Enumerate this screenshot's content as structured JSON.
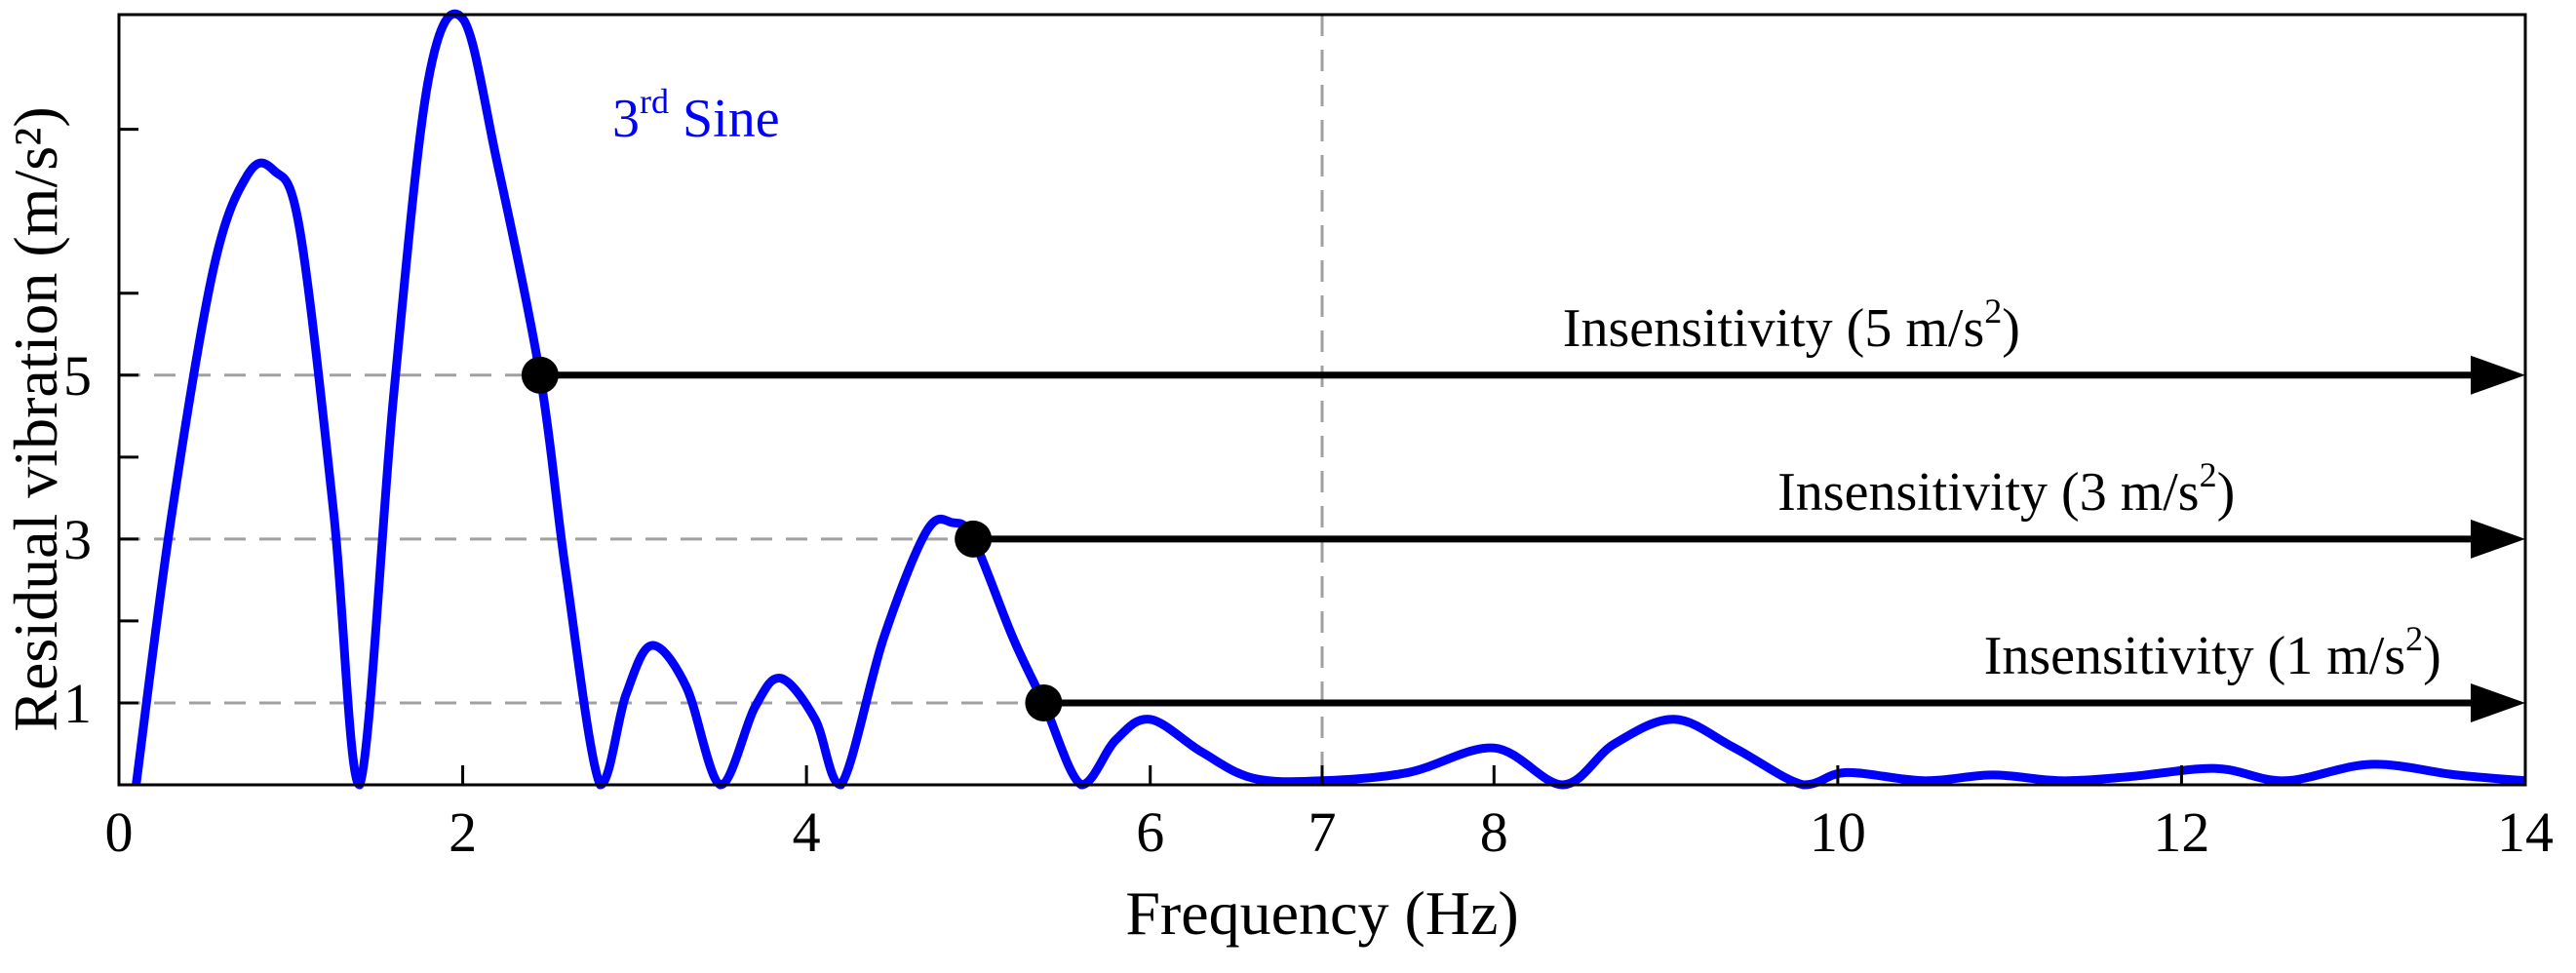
{
  "chart_data": {
    "type": "line",
    "xlabel": "Frequency (Hz)",
    "ylabel": "Residual vibration (m/s²)",
    "xlim": [
      0,
      14
    ],
    "ylim": [
      0,
      9.4
    ],
    "x_ticks": [
      {
        "value": 0,
        "label": "0"
      },
      {
        "value": 2,
        "label": "2"
      },
      {
        "value": 4,
        "label": "4"
      },
      {
        "value": 6,
        "label": "6"
      },
      {
        "value": 7,
        "label": "7"
      },
      {
        "value": 8,
        "label": "8"
      },
      {
        "value": 10,
        "label": "10"
      },
      {
        "value": 12,
        "label": "12"
      },
      {
        "value": 14,
        "label": "14"
      }
    ],
    "y_ticks": [
      {
        "value": 1,
        "label": "1"
      },
      {
        "value": 2,
        "label": ""
      },
      {
        "value": 3,
        "label": "3"
      },
      {
        "value": 4,
        "label": ""
      },
      {
        "value": 5,
        "label": "5"
      },
      {
        "value": 6,
        "label": ""
      },
      {
        "value": 8,
        "label": ""
      }
    ],
    "series": [
      {
        "name": "3rd Sine",
        "name_main": "3",
        "name_sup": "rd",
        "name_rest": " Sine",
        "color": "#0000ff",
        "x": [
          0.1,
          0.3,
          0.55,
          0.75,
          0.9,
          1.05,
          1.25,
          1.4,
          1.6,
          1.8,
          2.0,
          2.2,
          2.45,
          2.6,
          2.8,
          2.95,
          3.1,
          3.3,
          3.5,
          3.7,
          3.85,
          4.05,
          4.2,
          4.45,
          4.7,
          4.85,
          4.97,
          5.2,
          5.38,
          5.6,
          5.8,
          6.0,
          6.3,
          6.6,
          7.0,
          7.5,
          8.0,
          8.4,
          8.7,
          9.05,
          9.4,
          9.8,
          10.05,
          10.5,
          10.9,
          11.3,
          11.7,
          12.2,
          12.6,
          13.1,
          13.6,
          14.0
        ],
        "y": [
          0.0,
          3.2,
          6.3,
          7.45,
          7.5,
          6.8,
          3.3,
          0.0,
          4.8,
          8.6,
          9.35,
          7.6,
          5.0,
          2.6,
          0.0,
          1.1,
          1.7,
          1.2,
          0.0,
          0.95,
          1.3,
          0.8,
          0.0,
          1.8,
          3.1,
          3.2,
          3.0,
          1.8,
          1.0,
          0.0,
          0.55,
          0.8,
          0.4,
          0.08,
          0.05,
          0.15,
          0.45,
          0.0,
          0.5,
          0.8,
          0.45,
          0.0,
          0.15,
          0.05,
          0.12,
          0.05,
          0.1,
          0.2,
          0.05,
          0.25,
          0.12,
          0.05
        ]
      }
    ],
    "reference_lines": [
      {
        "orientation": "horizontal",
        "value": 5,
        "style": "dashed",
        "color": "#a0a0a0"
      },
      {
        "orientation": "horizontal",
        "value": 3,
        "style": "dashed",
        "color": "#a0a0a0"
      },
      {
        "orientation": "horizontal",
        "value": 1,
        "style": "dashed",
        "color": "#a0a0a0"
      },
      {
        "orientation": "vertical",
        "value": 7,
        "style": "dashed",
        "color": "#a0a0a0"
      }
    ],
    "annotations": [
      {
        "start_x": 2.45,
        "y": 5,
        "end_x": 14,
        "label_main": "Insensitivity (5 m/s",
        "label_sup": "2",
        "label_close": ")",
        "label_x": 8.4
      },
      {
        "start_x": 4.97,
        "y": 3,
        "end_x": 14,
        "label_main": "Insensitivity (3 m/s",
        "label_sup": "2",
        "label_close": ")",
        "label_x": 9.65
      },
      {
        "start_x": 5.38,
        "y": 1,
        "end_x": 14,
        "label_main": "Insensitivity (1 m/s",
        "label_sup": "2",
        "label_close": ")",
        "label_x": 10.85
      }
    ]
  }
}
